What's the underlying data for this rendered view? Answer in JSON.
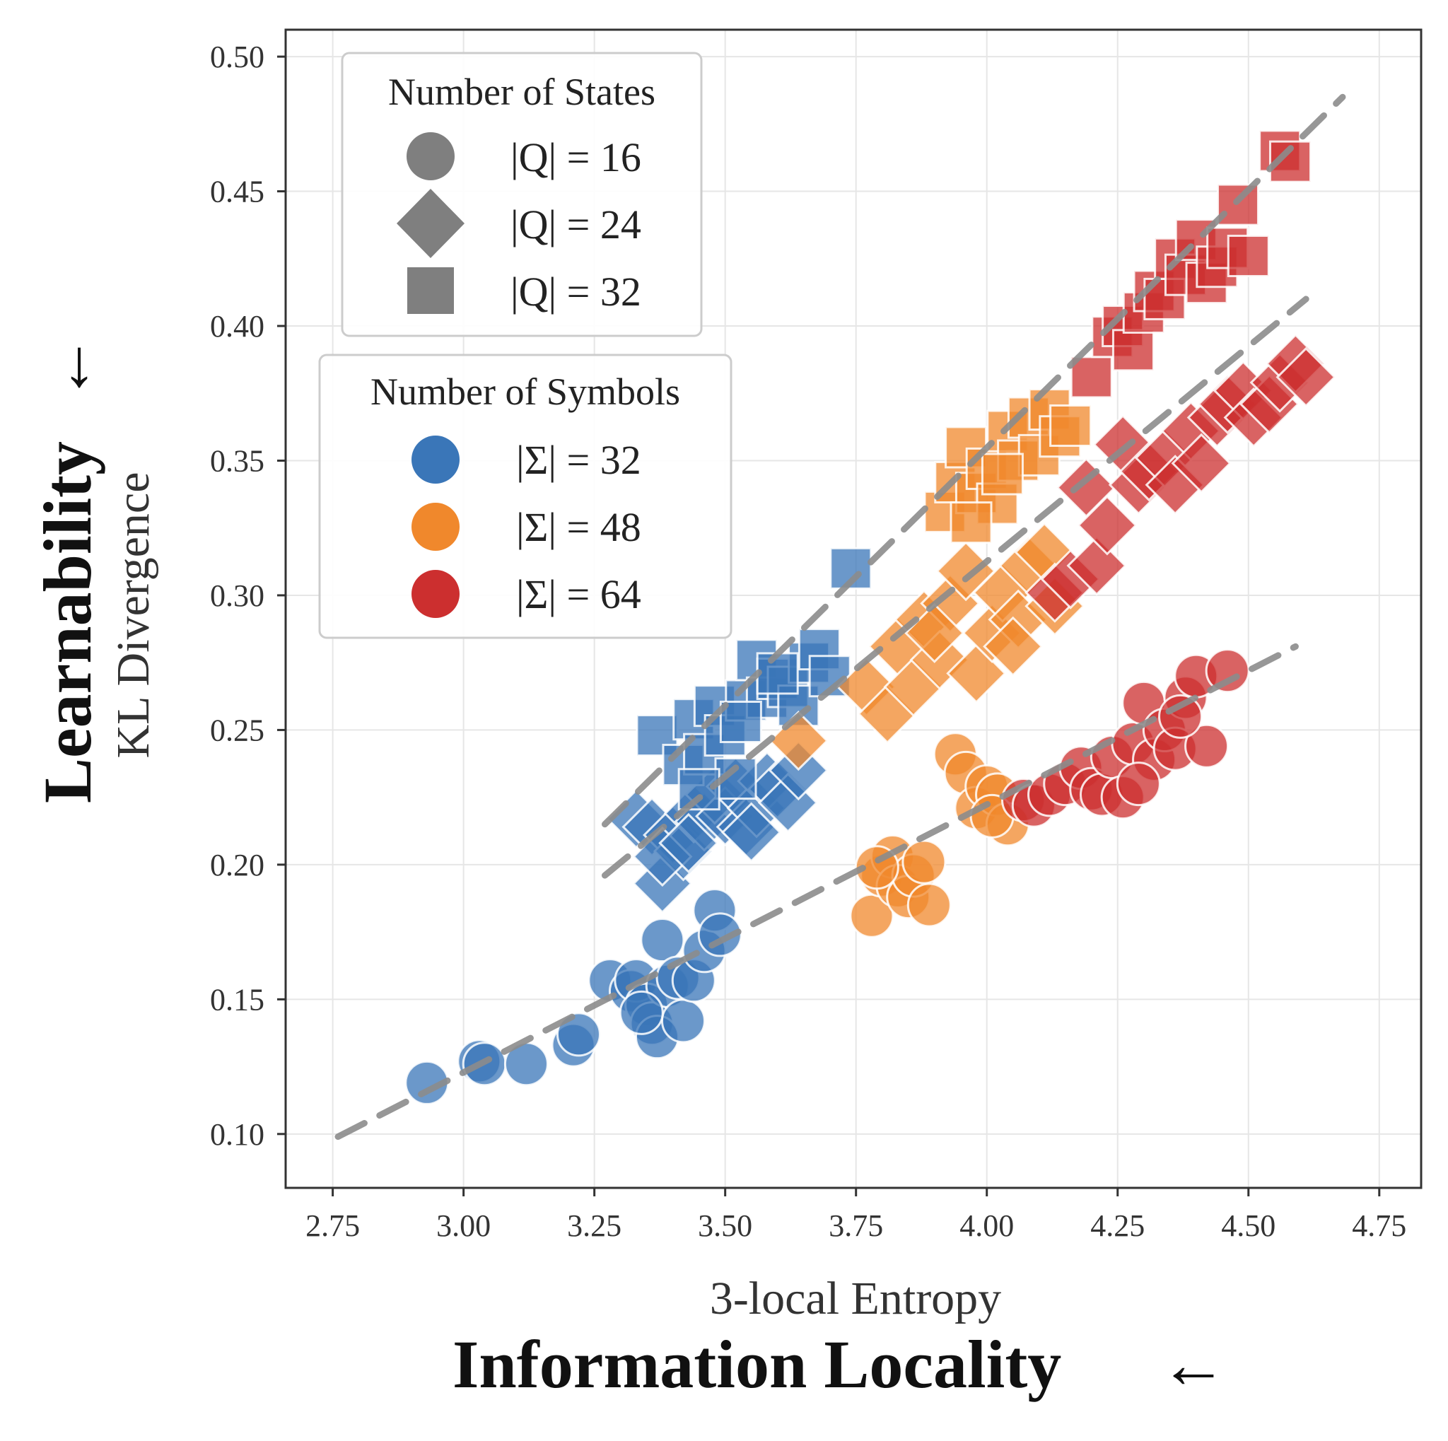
{
  "chart_data": {
    "type": "scatter",
    "title": "",
    "xlabel": "3-local Entropy",
    "ylabel": "KL Divergence",
    "x_concept_label": "Information Locality",
    "y_concept_label": "Learnability",
    "arrow_glyph": "←",
    "xlim": [
      2.66,
      4.83
    ],
    "ylim": [
      0.08,
      0.51
    ],
    "x_ticks": [
      2.75,
      3.0,
      3.25,
      3.5,
      3.75,
      4.0,
      4.25,
      4.5,
      4.75
    ],
    "y_ticks": [
      0.1,
      0.15,
      0.2,
      0.25,
      0.3,
      0.35,
      0.4,
      0.45,
      0.5
    ],
    "x_tick_labels": [
      "2.75",
      "3.00",
      "3.25",
      "3.50",
      "3.75",
      "4.00",
      "4.25",
      "4.50",
      "4.75"
    ],
    "y_tick_labels": [
      "0.10",
      "0.15",
      "0.20",
      "0.25",
      "0.30",
      "0.35",
      "0.40",
      "0.45",
      "0.50"
    ],
    "grid": true,
    "colors": {
      "s32": "#3a76b8",
      "s48": "#f0882c",
      "s64": "#cc2f2f",
      "legend_gray": "#7f7f7f",
      "trend": "#8c8c8c"
    },
    "legend_states": {
      "title": "Number of States",
      "placement": "top-left",
      "entries": [
        {
          "label": "|Q| = 16",
          "marker": "circle"
        },
        {
          "label": "|Q| = 24",
          "marker": "diamond"
        },
        {
          "label": "|Q| = 32",
          "marker": "square"
        }
      ]
    },
    "legend_symbols": {
      "title": "Number of Symbols",
      "placement": "upper-left",
      "entries": [
        {
          "label": "|Σ| = 32",
          "color": "#3a76b8"
        },
        {
          "label": "|Σ| = 48",
          "color": "#f0882c"
        },
        {
          "label": "|Σ| = 64",
          "color": "#cc2f2f"
        }
      ]
    },
    "trend_lines": [
      {
        "marker": "circle",
        "x": [
          2.76,
          4.59
        ],
        "y": [
          0.099,
          0.281
        ]
      },
      {
        "marker": "diamond",
        "x": [
          3.27,
          4.61
        ],
        "y": [
          0.196,
          0.41
        ]
      },
      {
        "marker": "square",
        "x": [
          3.27,
          4.68
        ],
        "y": [
          0.215,
          0.485
        ]
      }
    ],
    "series": [
      {
        "symbols": 32,
        "states": 16,
        "marker": "circle",
        "color": "#3a76b8",
        "x": [
          2.93,
          3.03,
          3.04,
          3.12,
          3.21,
          3.22,
          3.28,
          3.32,
          3.33,
          3.35,
          3.36,
          3.37,
          3.38,
          3.39,
          3.41,
          3.42,
          3.44,
          3.46,
          3.48,
          3.49,
          3.34
        ],
        "y": [
          0.119,
          0.127,
          0.126,
          0.126,
          0.133,
          0.137,
          0.157,
          0.153,
          0.157,
          0.148,
          0.141,
          0.136,
          0.172,
          0.155,
          0.158,
          0.142,
          0.157,
          0.168,
          0.183,
          0.174,
          0.145
        ]
      },
      {
        "symbols": 32,
        "states": 24,
        "marker": "diamond",
        "color": "#3a76b8",
        "x": [
          3.33,
          3.36,
          3.38,
          3.4,
          3.42,
          3.44,
          3.46,
          3.48,
          3.5,
          3.52,
          3.54,
          3.56,
          3.58,
          3.6,
          3.62,
          3.64,
          3.38,
          3.43,
          3.55
        ],
        "y": [
          0.217,
          0.214,
          0.193,
          0.211,
          0.205,
          0.219,
          0.216,
          0.226,
          0.218,
          0.229,
          0.214,
          0.221,
          0.231,
          0.228,
          0.223,
          0.235,
          0.203,
          0.208,
          0.212
        ]
      },
      {
        "symbols": 32,
        "states": 32,
        "marker": "square",
        "color": "#3a76b8",
        "x": [
          3.37,
          3.42,
          3.44,
          3.46,
          3.48,
          3.5,
          3.52,
          3.54,
          3.56,
          3.58,
          3.6,
          3.62,
          3.64,
          3.66,
          3.68,
          3.7,
          3.74,
          3.45,
          3.53,
          3.6
        ],
        "y": [
          0.248,
          0.237,
          0.254,
          0.241,
          0.259,
          0.248,
          0.232,
          0.261,
          0.276,
          0.262,
          0.269,
          0.266,
          0.259,
          0.275,
          0.28,
          0.27,
          0.31,
          0.228,
          0.253,
          0.271
        ]
      },
      {
        "symbols": 48,
        "states": 16,
        "marker": "circle",
        "color": "#f0882c",
        "x": [
          3.78,
          3.8,
          3.82,
          3.83,
          3.85,
          3.86,
          3.88,
          3.89,
          3.94,
          3.96,
          3.98,
          4.0,
          4.02,
          4.04,
          3.79,
          4.01
        ],
        "y": [
          0.181,
          0.196,
          0.203,
          0.192,
          0.188,
          0.196,
          0.201,
          0.185,
          0.241,
          0.234,
          0.221,
          0.229,
          0.226,
          0.215,
          0.199,
          0.218
        ]
      },
      {
        "symbols": 48,
        "states": 24,
        "marker": "diamond",
        "color": "#f0882c",
        "x": [
          3.64,
          3.77,
          3.81,
          3.83,
          3.86,
          3.88,
          3.91,
          3.93,
          3.96,
          3.98,
          4.01,
          4.03,
          4.06,
          4.08,
          4.11,
          4.13,
          3.9,
          4.05
        ],
        "y": [
          0.246,
          0.266,
          0.256,
          0.281,
          0.266,
          0.291,
          0.276,
          0.297,
          0.309,
          0.271,
          0.286,
          0.301,
          0.291,
          0.311,
          0.316,
          0.296,
          0.286,
          0.281
        ]
      },
      {
        "symbols": 48,
        "states": 32,
        "marker": "square",
        "color": "#f0882c",
        "x": [
          3.92,
          3.94,
          3.96,
          3.98,
          4.0,
          4.02,
          4.04,
          4.06,
          4.08,
          4.1,
          4.12,
          4.14,
          4.16,
          3.97,
          4.03
        ],
        "y": [
          0.331,
          0.342,
          0.355,
          0.338,
          0.347,
          0.334,
          0.361,
          0.35,
          0.366,
          0.352,
          0.369,
          0.359,
          0.363,
          0.327,
          0.345
        ]
      },
      {
        "symbols": 64,
        "states": 16,
        "marker": "circle",
        "color": "#cc2f2f",
        "x": [
          4.07,
          4.09,
          4.12,
          4.15,
          4.18,
          4.2,
          4.22,
          4.24,
          4.26,
          4.28,
          4.3,
          4.32,
          4.34,
          4.36,
          4.38,
          4.4,
          4.42,
          4.46,
          4.29,
          4.37
        ],
        "y": [
          0.224,
          0.222,
          0.226,
          0.23,
          0.236,
          0.228,
          0.226,
          0.24,
          0.225,
          0.245,
          0.26,
          0.239,
          0.25,
          0.243,
          0.262,
          0.27,
          0.244,
          0.272,
          0.23,
          0.255
        ]
      },
      {
        "symbols": 64,
        "states": 24,
        "marker": "diamond",
        "color": "#cc2f2f",
        "x": [
          4.13,
          4.16,
          4.19,
          4.21,
          4.23,
          4.26,
          4.29,
          4.31,
          4.34,
          4.36,
          4.39,
          4.41,
          4.44,
          4.46,
          4.49,
          4.51,
          4.54,
          4.56,
          4.59,
          4.61
        ],
        "y": [
          0.301,
          0.306,
          0.34,
          0.311,
          0.326,
          0.356,
          0.341,
          0.346,
          0.351,
          0.341,
          0.361,
          0.349,
          0.366,
          0.371,
          0.376,
          0.366,
          0.371,
          0.379,
          0.386,
          0.381
        ]
      },
      {
        "symbols": 64,
        "states": 32,
        "marker": "square",
        "color": "#cc2f2f",
        "x": [
          4.2,
          4.24,
          4.26,
          4.28,
          4.3,
          4.32,
          4.34,
          4.36,
          4.38,
          4.4,
          4.42,
          4.44,
          4.46,
          4.48,
          4.5,
          4.56,
          4.58
        ],
        "y": [
          0.381,
          0.396,
          0.4,
          0.391,
          0.405,
          0.413,
          0.41,
          0.425,
          0.419,
          0.432,
          0.416,
          0.422,
          0.429,
          0.445,
          0.426,
          0.465,
          0.461
        ]
      }
    ]
  }
}
